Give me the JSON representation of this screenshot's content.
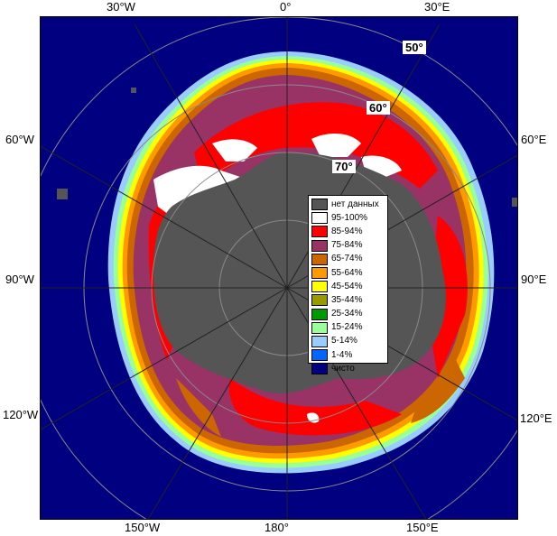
{
  "map": {
    "longitude_labels": {
      "top": [
        "30°W",
        "0°",
        "30°E"
      ],
      "bottom": [
        "150°W",
        "180°",
        "150°E"
      ],
      "left": [
        "60°W",
        "90°W",
        "120°W"
      ],
      "right": [
        "60°E",
        "90°E",
        "120°E"
      ]
    },
    "latitude_labels": [
      "50°",
      "60°",
      "70°"
    ]
  },
  "legend": {
    "items": [
      {
        "label": "нет данных",
        "color": "#555555"
      },
      {
        "label": "95-100%",
        "color": "#ffffff"
      },
      {
        "label": "85-94%",
        "color": "#ff0000"
      },
      {
        "label": "75-84%",
        "color": "#993366"
      },
      {
        "label": "65-74%",
        "color": "#cc6600"
      },
      {
        "label": "55-64%",
        "color": "#ff9900"
      },
      {
        "label": "45-54%",
        "color": "#ffff00"
      },
      {
        "label": "35-44%",
        "color": "#999900"
      },
      {
        "label": "25-34%",
        "color": "#009900"
      },
      {
        "label": "15-24%",
        "color": "#99ff99"
      },
      {
        "label": "5-14%",
        "color": "#99ccff"
      },
      {
        "label": "1-4%",
        "color": "#0066ff"
      },
      {
        "label": "чисто",
        "color": "#000080"
      }
    ]
  }
}
